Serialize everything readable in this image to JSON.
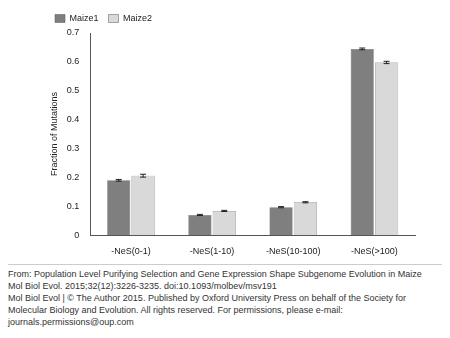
{
  "chart_data": {
    "type": "bar",
    "y_label": "Fraction of Mutations",
    "categories": [
      "-NeS(0-1)",
      "-NeS(1-10)",
      "-NeS(10-100)",
      "-NeS(>100)"
    ],
    "series": [
      {
        "name": "Maize1",
        "color": "#7f7f7f",
        "values": [
          0.19,
          0.07,
          0.097,
          0.645
        ],
        "errors": [
          0.003,
          0.002,
          0.002,
          0.003
        ]
      },
      {
        "name": "Maize2",
        "color": "#d9d9d9",
        "values": [
          0.206,
          0.084,
          0.114,
          0.598
        ],
        "errors": [
          0.005,
          0.002,
          0.002,
          0.004
        ]
      }
    ],
    "ylim": [
      0,
      0.7
    ],
    "yticks": [
      0,
      0.1,
      0.2,
      0.3,
      0.4,
      0.5,
      0.6,
      0.7
    ],
    "grid": false,
    "legend": "top-left",
    "annotations": [
      "From: Population Level Purifying Selection and Gene Expression Shape Subgenome Evolution in Maize",
      "Mol Biol Evol. 2015;32(12):3226-3235. doi:10.1093/molbev/msv191",
      "Mol Biol Evol | © The Author 2015. Published by Oxford University Press on behalf of the Society for Molecular Biology and Evolution. All rights reserved. For permissions, please e-mail: journals.permissions@oup.com"
    ]
  }
}
